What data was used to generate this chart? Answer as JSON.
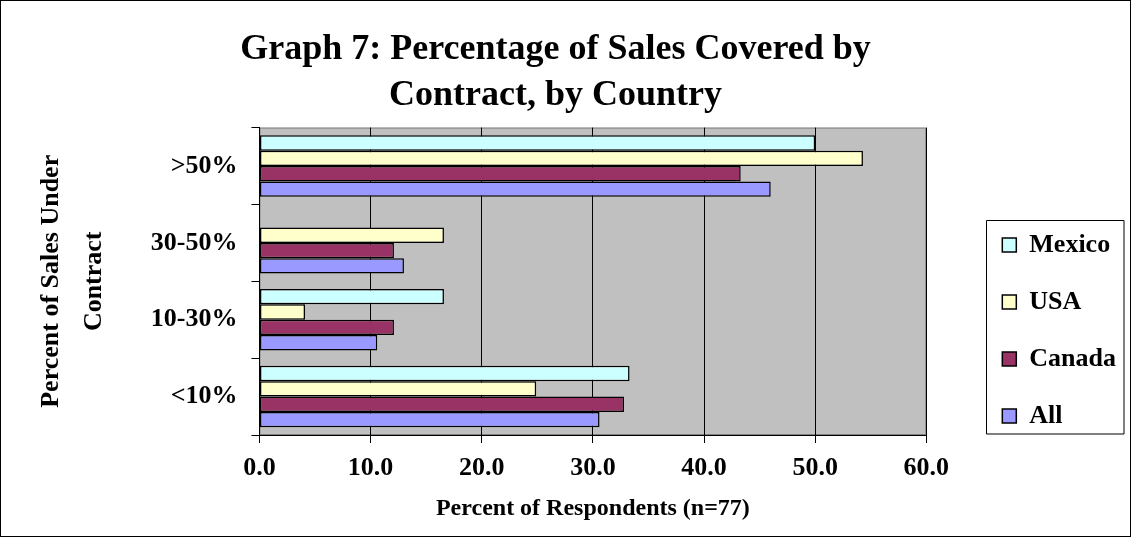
{
  "chart_data": {
    "type": "bar",
    "orientation": "horizontal",
    "title": "Graph 7: Percentage of Sales Covered by Contract, by Country",
    "xlabel": "Percent of Respondents (n=77)",
    "ylabel": "Percent of Sales Under Contract",
    "categories": [
      ">50%",
      "30-50%",
      "10-30%",
      "<10%"
    ],
    "series": [
      {
        "name": "Mexico",
        "color": "#ccffff",
        "values": [
          50.0,
          0,
          16.6,
          33.3
        ]
      },
      {
        "name": "USA",
        "color": "#ffffcc",
        "values": [
          54.3,
          16.6,
          4.1,
          24.9
        ]
      },
      {
        "name": "Canada",
        "color": "#993366",
        "values": [
          43.3,
          12.1,
          12.1,
          32.8
        ]
      },
      {
        "name": "All",
        "color": "#9999ff",
        "values": [
          46.0,
          13.0,
          10.6,
          30.6
        ]
      }
    ],
    "xlim": [
      0,
      60
    ],
    "xticks": [
      {
        "value": 0,
        "label": "0.0"
      },
      {
        "value": 10,
        "label": "10.0"
      },
      {
        "value": 20,
        "label": "20.0"
      },
      {
        "value": 30,
        "label": "30.0"
      },
      {
        "value": 40,
        "label": "40.0"
      },
      {
        "value": 50,
        "label": "50.0"
      },
      {
        "value": 60,
        "label": "60.0"
      }
    ],
    "grid": "x",
    "legend": "right"
  }
}
